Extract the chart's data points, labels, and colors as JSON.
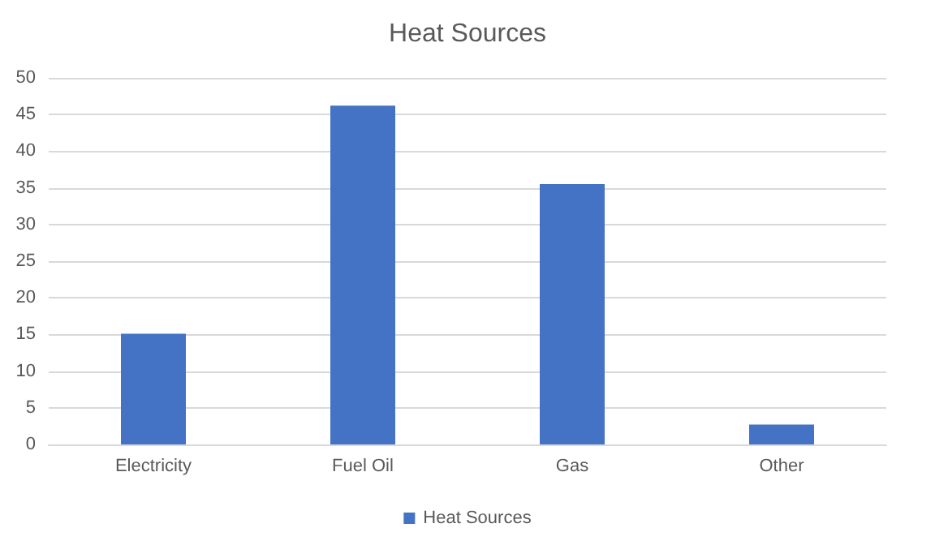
{
  "chart_data": {
    "type": "bar",
    "title": "Heat Sources",
    "categories": [
      "Electricity",
      "Fuel Oil",
      "Gas",
      "Other"
    ],
    "series": [
      {
        "name": "Heat Sources",
        "color": "#4472c4",
        "values": [
          15.1,
          46.2,
          35.5,
          2.7
        ]
      }
    ],
    "ylim": [
      0,
      50
    ],
    "yticks": [
      0,
      5,
      10,
      15,
      20,
      25,
      30,
      35,
      40,
      45,
      50
    ],
    "grid": "y",
    "legend": "bottom"
  }
}
